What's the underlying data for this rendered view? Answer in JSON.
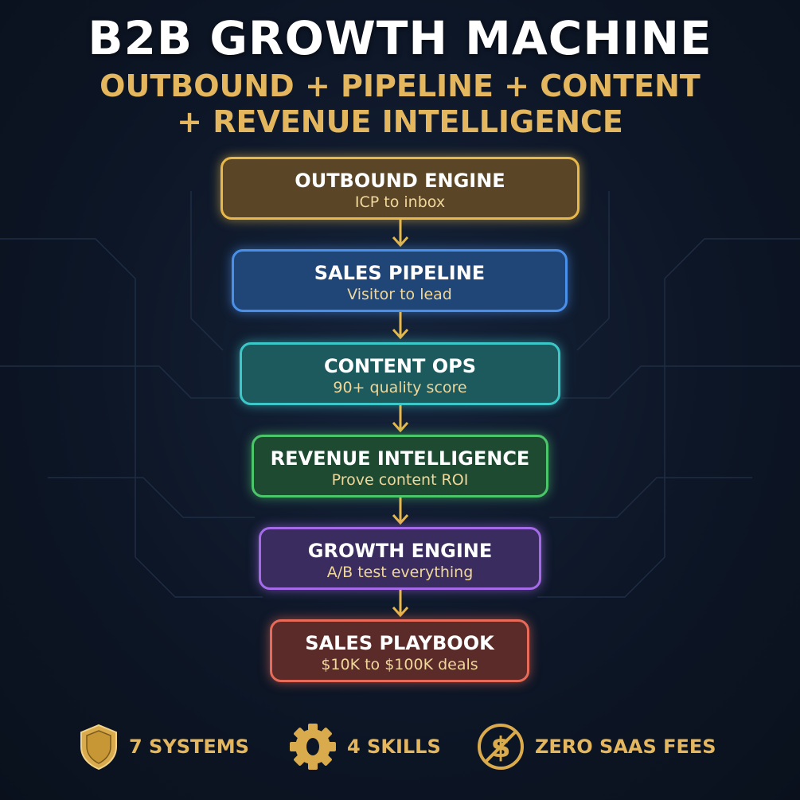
{
  "header": {
    "title": "B2B GROWTH MACHINE",
    "subtitle_line1": "OUTBOUND + PIPELINE + CONTENT",
    "subtitle_line2": "+ REVENUE INTELLIGENCE"
  },
  "stages": [
    {
      "title": "OUTBOUND ENGINE",
      "subtitle": "ICP to inbox",
      "fill": "#5a4527",
      "border": "#e8b94a"
    },
    {
      "title": "SALES PIPELINE",
      "subtitle": "Visitor to lead",
      "fill": "#1f4677",
      "border": "#4a8fe8"
    },
    {
      "title": "CONTENT OPS",
      "subtitle": "90+ quality score",
      "fill": "#1d5a5e",
      "border": "#3cc8c8"
    },
    {
      "title": "REVENUE INTELLIGENCE",
      "subtitle": "Prove content ROI",
      "fill": "#1e4a32",
      "border": "#4cc66a"
    },
    {
      "title": "GROWTH ENGINE",
      "subtitle": "A/B test everything",
      "fill": "#3a2c5e",
      "border": "#a46ae8"
    },
    {
      "title": "SALES PLAYBOOK",
      "subtitle": "$10K to $100K deals",
      "fill": "#5a2b29",
      "border": "#e86a58"
    }
  ],
  "footer": [
    {
      "icon": "shield-icon",
      "label": "7 SYSTEMS"
    },
    {
      "icon": "gear-icon",
      "label": "4 SKILLS"
    },
    {
      "icon": "no-dollar-icon",
      "label": "ZERO SAAS FEES"
    }
  ],
  "colors": {
    "accent": "#e4b75e",
    "arrow": "#e8b94a",
    "background": "#0d1626"
  }
}
